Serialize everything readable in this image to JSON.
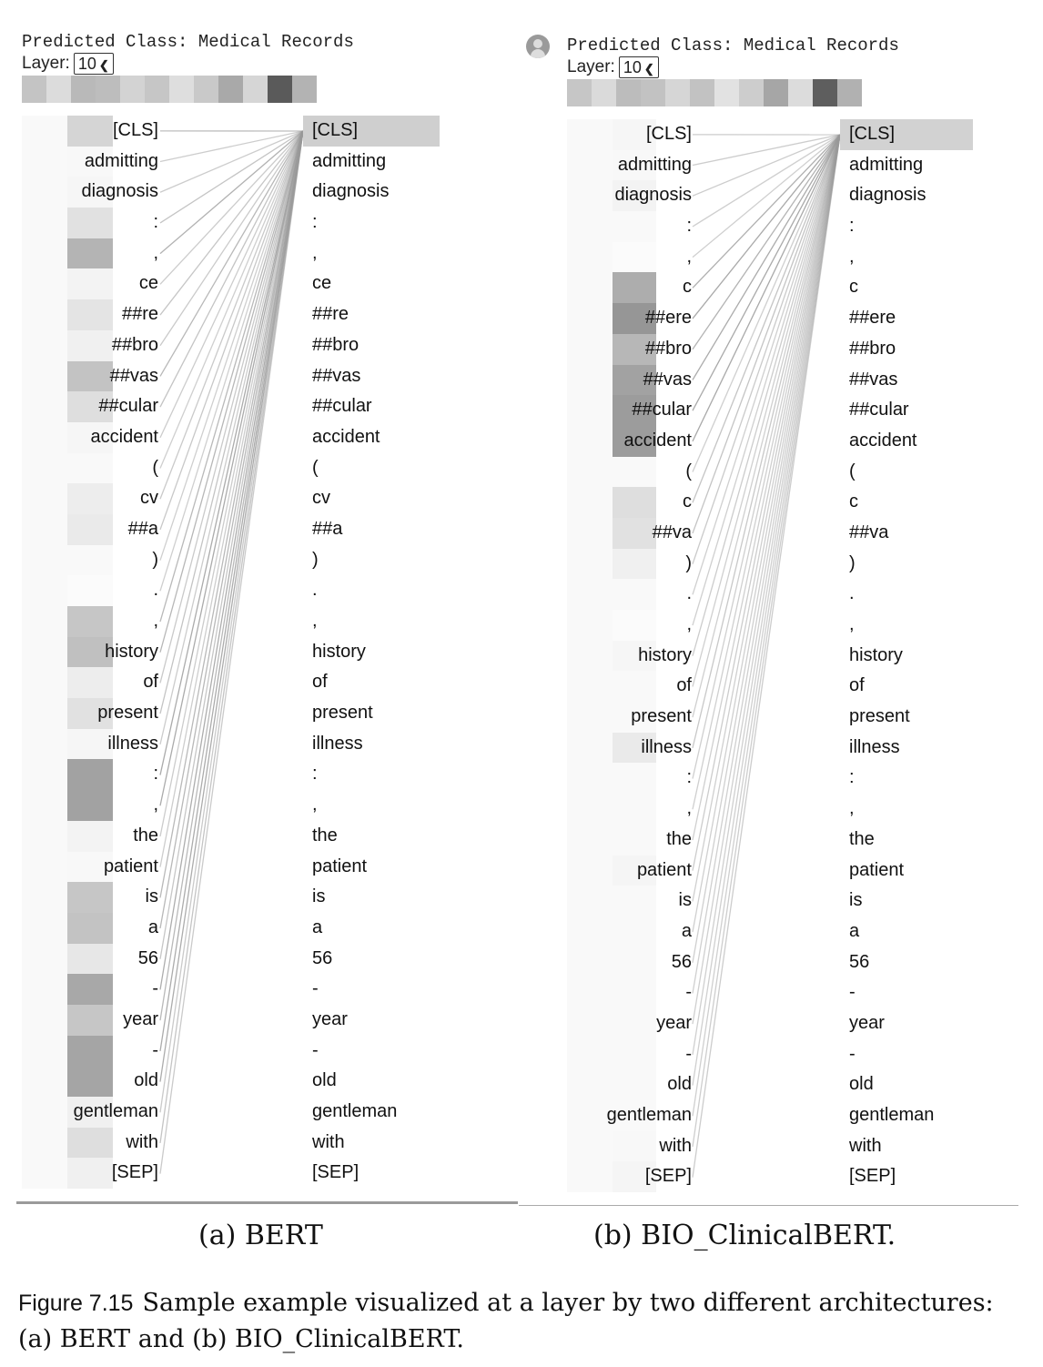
{
  "panels": [
    {
      "predicted_class": "Predicted Class: Medical Records",
      "layer_label": "Layer:",
      "layer_value": "10",
      "head_shades": [
        "#c4c4c4",
        "#dcdcdc",
        "#b9b9b9",
        "#bdbdbd",
        "#d3d3d3",
        "#c6c6c6",
        "#dedede",
        "#c9c9c9",
        "#a9a9a9",
        "#d6d6d6",
        "#5a5a5a",
        "#b3b3b3"
      ],
      "tokens": [
        "[CLS]",
        "admitting",
        "diagnosis",
        ":",
        ",",
        "ce",
        "##re",
        "##bro",
        "##vas",
        "##cular",
        "accident",
        "(",
        "cv",
        "##a",
        ")",
        ".",
        ",",
        "history",
        "of",
        "present",
        "illness",
        ":",
        ",",
        "the",
        "patient",
        "is",
        "a",
        "56",
        "-",
        "year",
        "-",
        "old",
        "gentleman",
        "with",
        "[SEP]"
      ],
      "left_weights": [
        0.28,
        0.05,
        0.06,
        0.2,
        0.5,
        0.08,
        0.18,
        0.1,
        0.4,
        0.22,
        0.06,
        0.04,
        0.12,
        0.14,
        0.04,
        0.03,
        0.38,
        0.42,
        0.12,
        0.2,
        0.06,
        0.62,
        0.62,
        0.08,
        0.05,
        0.38,
        0.4,
        0.16,
        0.58,
        0.38,
        0.6,
        0.6,
        0.1,
        0.22,
        0.1
      ],
      "right_weights": [
        0.32,
        0,
        0,
        0,
        0,
        0,
        0,
        0,
        0,
        0,
        0,
        0,
        0,
        0,
        0,
        0,
        0,
        0,
        0,
        0,
        0,
        0,
        0,
        0,
        0,
        0,
        0,
        0,
        0,
        0,
        0,
        0,
        0,
        0,
        0
      ],
      "subcaption": "(a) BERT"
    },
    {
      "predicted_class": "Predicted Class: Medical Records",
      "layer_label": "Layer:",
      "layer_value": "10",
      "head_shades": [
        "#c6c6c6",
        "#dadada",
        "#bcbcbc",
        "#c2c2c2",
        "#d6d6d6",
        "#c2c2c2",
        "#e2e2e2",
        "#cdcdcd",
        "#a6a6a6",
        "#dcdcdc",
        "#5e5e5e",
        "#b1b1b1"
      ],
      "tokens": [
        "[CLS]",
        "admitting",
        "diagnosis",
        ":",
        ",",
        "c",
        "##ere",
        "##bro",
        "##vas",
        "##cular",
        "accident",
        "(",
        "c",
        "##va",
        ")",
        ".",
        ",",
        "history",
        "of",
        "present",
        "illness",
        ":",
        ",",
        "the",
        "patient",
        "is",
        "a",
        "56",
        "-",
        "year",
        "-",
        "old",
        "gentleman",
        "with",
        "[SEP]"
      ],
      "left_weights": [
        0.06,
        0.05,
        0.08,
        0.04,
        0.03,
        0.55,
        0.7,
        0.48,
        0.62,
        0.66,
        0.66,
        0.04,
        0.22,
        0.2,
        0.1,
        0.04,
        0.03,
        0.06,
        0.04,
        0.04,
        0.14,
        0.04,
        0.04,
        0.04,
        0.07,
        0.04,
        0.04,
        0.04,
        0.04,
        0.04,
        0.04,
        0.04,
        0.04,
        0.05,
        0.07
      ],
      "right_weights": [
        0.3,
        0,
        0,
        0,
        0,
        0,
        0,
        0,
        0,
        0,
        0,
        0,
        0,
        0,
        0,
        0,
        0,
        0,
        0,
        0,
        0,
        0,
        0,
        0,
        0,
        0,
        0,
        0,
        0,
        0,
        0,
        0,
        0,
        0,
        0
      ],
      "subcaption": "(b) BIO_ClinicalBERT."
    }
  ],
  "figure_caption": {
    "label": "Figure 7.15",
    "text": "Sample example visualized at a layer by two different architectures: (a) BERT and (b) BIO_ClinicalBERT."
  },
  "icons": {
    "user": "user-avatar-icon",
    "dropdown": "chevron-down-icon"
  }
}
